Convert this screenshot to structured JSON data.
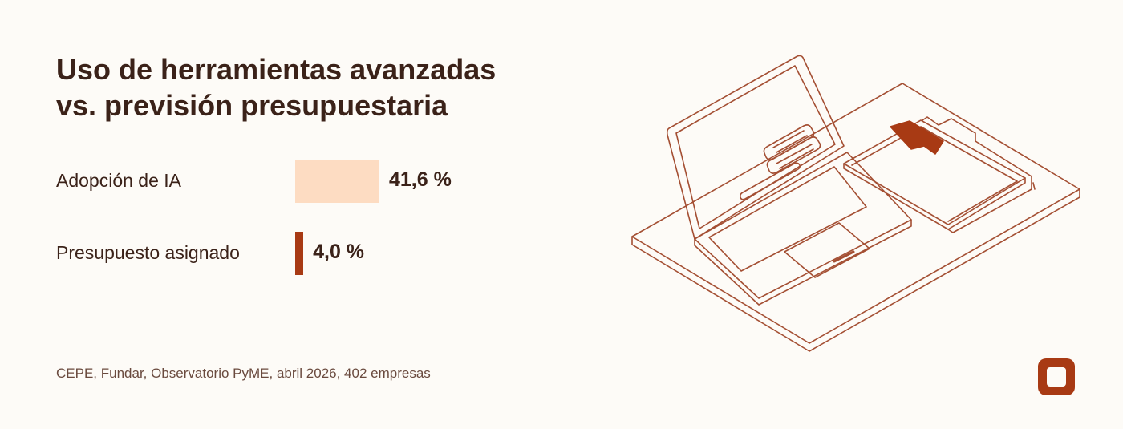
{
  "title_lines": [
    "Uso de herramientas avanzadas",
    "vs. previsión presupuestaria"
  ],
  "chart_data": {
    "type": "bar",
    "orientation": "horizontal",
    "categories": [
      "Adopción de IA",
      "Presupuesto asignado"
    ],
    "values": [
      41.6,
      4.0
    ],
    "value_labels": [
      "41,6 %",
      "4,0 %"
    ],
    "colors": [
      "#fddcc2",
      "#a83a14"
    ]
  },
  "source": "CEPE, Fundar, Observatorio PyME, abril 2026, 402 empresas",
  "icons": {
    "illustration": "laptop-and-folder-icon",
    "logo": "brand-logo-icon"
  },
  "colors": {
    "text": "#3b2219",
    "accent": "#a83a14",
    "background": "#fdfbf7",
    "line": "#a44f33"
  }
}
